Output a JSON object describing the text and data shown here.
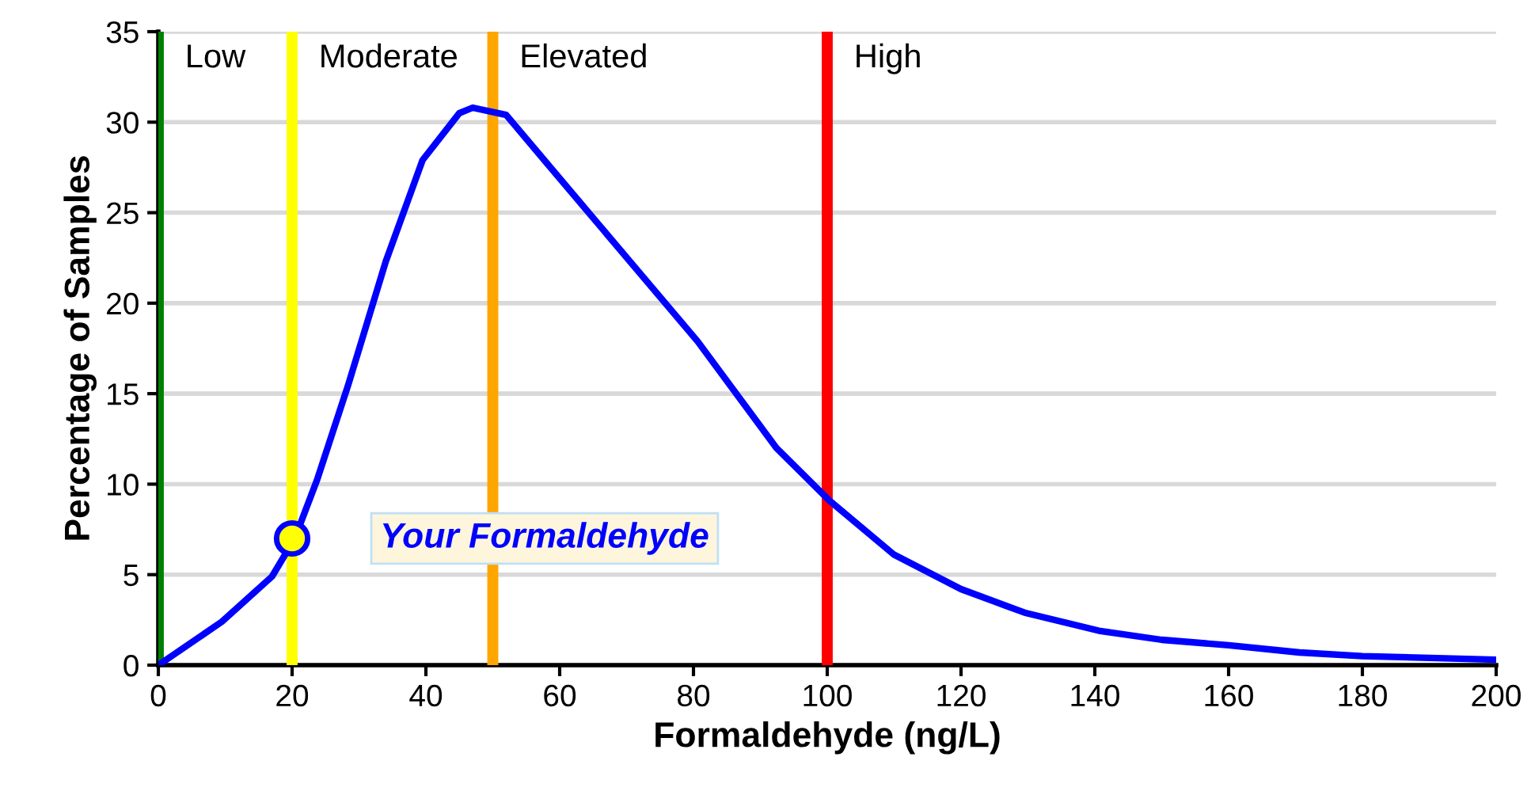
{
  "chart_data": {
    "type": "line",
    "xlabel": "Formaldehyde (ng/L)",
    "ylabel": "Percentage of Samples",
    "xlim": [
      0,
      200
    ],
    "xticks": [
      0,
      20,
      40,
      60,
      80,
      100,
      120,
      140,
      160,
      180,
      200
    ],
    "ylim": [
      0,
      35
    ],
    "yticks": [
      0,
      5,
      10,
      15,
      20,
      25,
      30,
      35
    ],
    "grid": "y",
    "legend": false,
    "series": [
      {
        "color": "#0000ff",
        "x": [
          0,
          9.5,
          17,
          20.4,
          23.7,
          28.4,
          34,
          39.5,
          45,
          47,
          52,
          57.7,
          66.4,
          80.6,
          92.4,
          100.3,
          110,
          120,
          129.5,
          140.6,
          150,
          160,
          170.6,
          180,
          200
        ],
        "values": [
          0,
          2.4,
          4.9,
          7.0,
          10.2,
          15.5,
          22.3,
          27.9,
          30.5,
          30.8,
          30.4,
          27.9,
          24.1,
          17.9,
          12.0,
          9.1,
          6.1,
          4.2,
          2.9,
          1.9,
          1.4,
          1.1,
          0.7,
          0.5,
          0.3
        ]
      },
      {
        "type": "scatter",
        "color": "#ffff00",
        "x": [
          20
        ],
        "values": [
          7
        ],
        "marker": "circle"
      }
    ],
    "ref_lines": [
      {
        "axis": "x",
        "value": 0,
        "label": "Low",
        "color": "#008000"
      },
      {
        "axis": "x",
        "value": 20,
        "label": "Moderate",
        "color": "#ffff00"
      },
      {
        "axis": "x",
        "value": 50,
        "label": "Elevated",
        "color": "#ffa500"
      },
      {
        "axis": "x",
        "value": 100,
        "label": "High",
        "color": "#ff0000"
      }
    ],
    "annotations": [
      {
        "text": "Your Formaldehyde",
        "x": 20,
        "y": 7
      }
    ]
  }
}
